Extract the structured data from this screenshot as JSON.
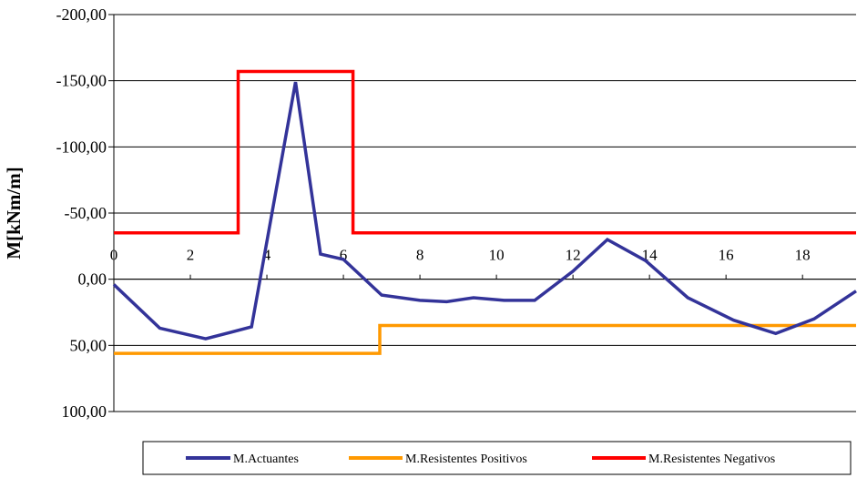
{
  "chart_data": {
    "type": "line",
    "ylabel": "M[kNm/m]",
    "ylim": [
      -200,
      100
    ],
    "y_inverted": true,
    "y_ticks": [
      -200,
      -150,
      -100,
      -50,
      0,
      50,
      100
    ],
    "y_tick_labels": [
      "-200,00",
      "-150,00",
      "-100,00",
      "-50,00",
      "0,00",
      "50,00",
      "100,00"
    ],
    "xlim": [
      0,
      19.4
    ],
    "x_ticks": [
      0,
      2,
      4,
      6,
      8,
      10,
      12,
      14,
      16,
      18
    ],
    "x_tick_labels": [
      "0",
      "2",
      "4",
      "6",
      "8",
      "10",
      "12",
      "14",
      "16",
      "18"
    ],
    "grid": "horizontal major",
    "legend_position": "bottom",
    "series": [
      {
        "name": "M.Actuantes",
        "color": "#333399",
        "x": [
          0,
          1.2,
          2.4,
          3.6,
          4.75,
          5.4,
          6.0,
          7.0,
          8.0,
          8.7,
          9.4,
          10.2,
          11.0,
          12.0,
          12.9,
          13.9,
          15.0,
          16.2,
          17.3,
          18.3,
          19.4
        ],
        "y": [
          4,
          37,
          45,
          36,
          -149,
          -19,
          -15,
          12,
          16,
          17,
          14,
          16,
          16,
          -6,
          -30,
          -14,
          14,
          31,
          41,
          30,
          9
        ]
      },
      {
        "name": "M.Resistentes Positivos",
        "color": "#FF9900",
        "x": [
          0,
          6.95,
          6.95,
          19.4
        ],
        "y": [
          56,
          56,
          35,
          35
        ]
      },
      {
        "name": "M.Resistentes Negativos",
        "color": "#FF0000",
        "x": [
          0,
          3.25,
          3.25,
          6.25,
          6.25,
          19.4
        ],
        "y": [
          -35,
          -35,
          -157,
          -157,
          -35,
          -35
        ]
      }
    ]
  }
}
